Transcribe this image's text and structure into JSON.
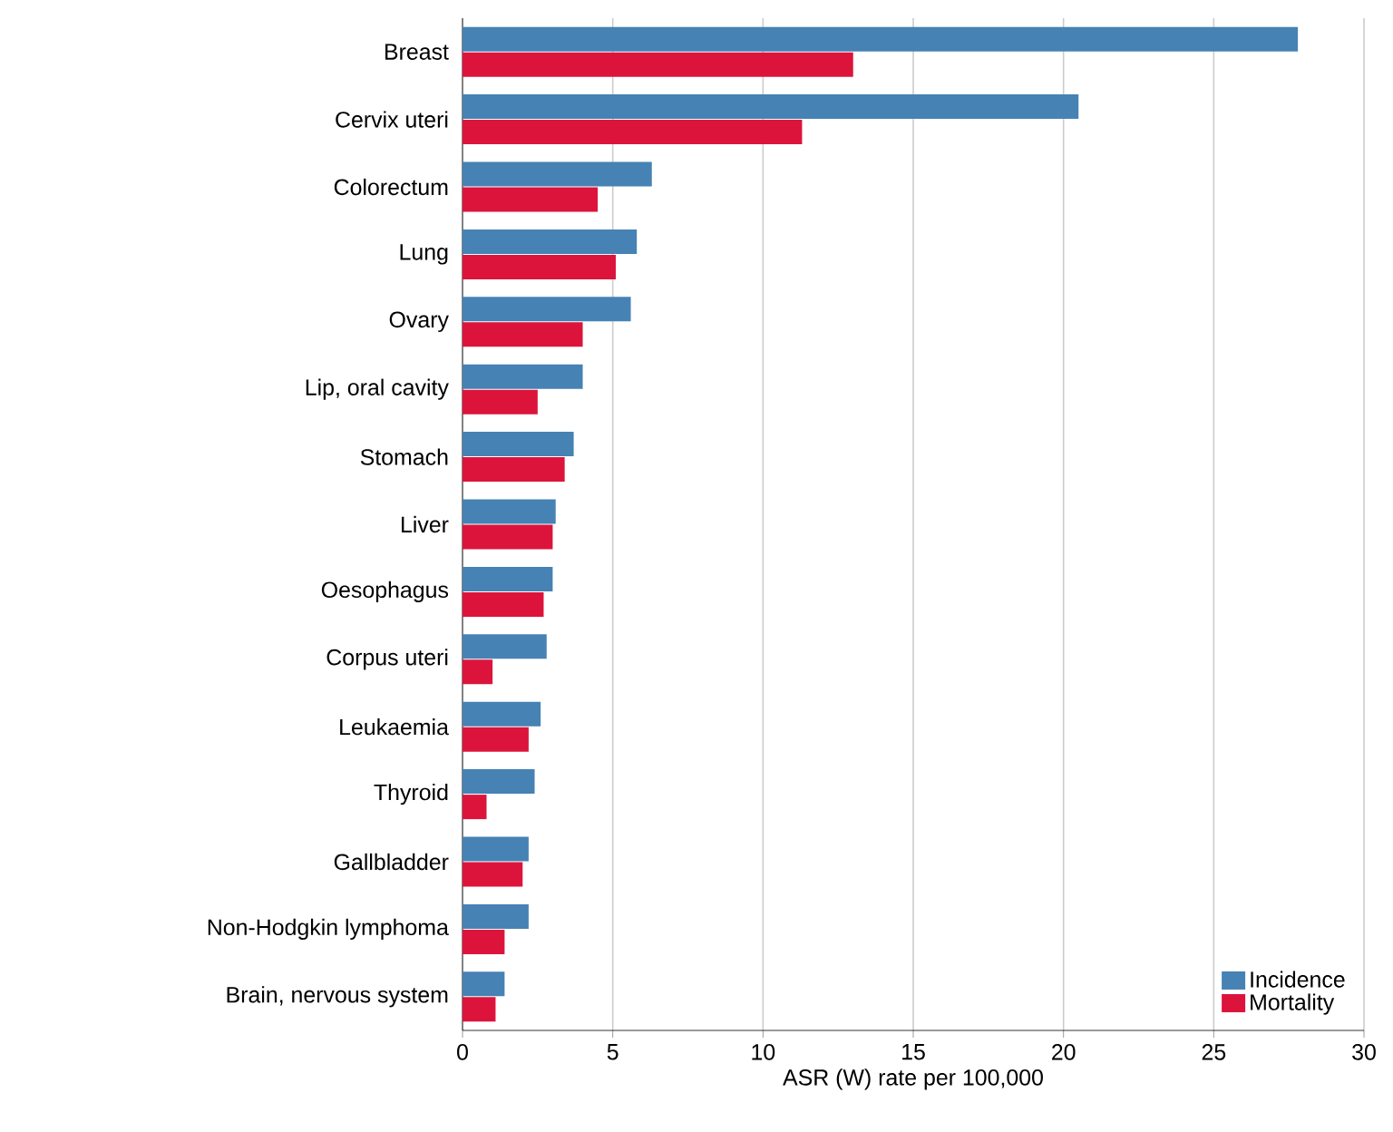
{
  "chart_data": {
    "type": "bar",
    "orientation": "horizontal",
    "xlabel": "ASR (W) rate per 100,000",
    "categories": [
      "Breast",
      "Cervix uteri",
      "Colorectum",
      "Lung",
      "Ovary",
      "Lip, oral cavity",
      "Stomach",
      "Liver",
      "Oesophagus",
      "Corpus uteri",
      "Leukaemia",
      "Thyroid",
      "Gallbladder",
      "Non-Hodgkin lymphoma",
      "Brain, nervous system"
    ],
    "series": [
      {
        "name": "Incidence",
        "color": "#4682b4",
        "values": [
          27.8,
          20.5,
          6.3,
          5.8,
          5.6,
          4.0,
          3.7,
          3.1,
          3.0,
          2.8,
          2.6,
          2.4,
          2.2,
          2.2,
          1.4
        ]
      },
      {
        "name": "Mortality",
        "color": "#dc143c",
        "values": [
          13.0,
          11.3,
          4.5,
          5.1,
          4.0,
          2.5,
          3.4,
          3.0,
          2.7,
          1.0,
          2.2,
          0.8,
          2.0,
          1.4,
          1.1
        ]
      }
    ],
    "xlim": [
      0,
      30
    ],
    "xticks": [
      0,
      5,
      10,
      15,
      20,
      25,
      30
    ],
    "grid": "x",
    "legend": "bottom right"
  }
}
